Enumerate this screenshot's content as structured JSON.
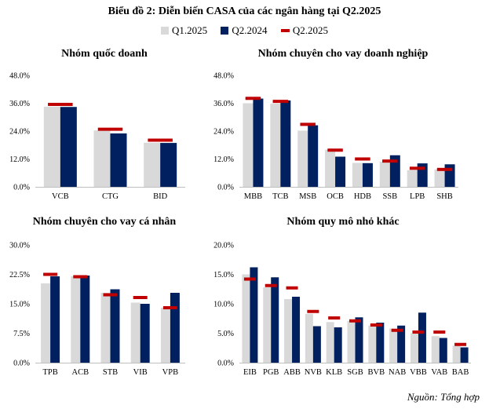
{
  "figure": {
    "title": "Biểu đồ 2: Diễn biến CASA của các ngân hàng tại Q2.2025",
    "source": "Nguồn: Tổng hợp"
  },
  "legend": [
    {
      "name": "Q1.2025",
      "color": "#d9d9d9",
      "kind": "bar"
    },
    {
      "name": "Q2.2024",
      "color": "#002060",
      "kind": "bar"
    },
    {
      "name": "Q2.2025",
      "color": "#c00000",
      "kind": "marker"
    }
  ],
  "chart_data": [
    {
      "type": "bar",
      "title": "Nhóm quốc doanh",
      "categories": [
        "VCB",
        "CTG",
        "BID"
      ],
      "ylim": [
        0,
        48
      ],
      "yticks": [
        0,
        12,
        24,
        36,
        48
      ],
      "yticklabels": [
        "0.0%",
        "12.0%",
        "24.0%",
        "36.0%",
        "48.0%"
      ],
      "series": [
        {
          "name": "Q1.2025",
          "values": [
            34.5,
            24.3,
            19.0
          ]
        },
        {
          "name": "Q2.2024",
          "values": [
            34.4,
            23.0,
            18.9
          ]
        },
        {
          "name": "Q2.2025",
          "values": [
            35.5,
            24.8,
            20.1
          ]
        }
      ]
    },
    {
      "type": "bar",
      "title": "Nhóm chuyên cho vay doanh nghiệp",
      "categories": [
        "MBB",
        "TCB",
        "MSB",
        "OCB",
        "HDB",
        "SSB",
        "LPB",
        "SHB"
      ],
      "ylim": [
        0,
        48
      ],
      "yticks": [
        0,
        12,
        24,
        36,
        48
      ],
      "yticklabels": [
        "0.0%",
        "12.0%",
        "24.0%",
        "36.0%",
        "48.0%"
      ],
      "series": [
        {
          "name": "Q1.2025",
          "values": [
            36.0,
            35.8,
            24.2,
            16.0,
            10.3,
            10.8,
            7.2,
            7.5
          ]
        },
        {
          "name": "Q2.2024",
          "values": [
            38.0,
            37.2,
            26.5,
            13.0,
            10.2,
            13.6,
            10.1,
            9.7
          ]
        },
        {
          "name": "Q2.2025",
          "values": [
            38.1,
            36.8,
            26.9,
            15.8,
            12.0,
            11.1,
            8.0,
            7.5
          ]
        }
      ]
    },
    {
      "type": "bar",
      "title": "Nhóm chuyên cho vay cá nhân",
      "categories": [
        "TPB",
        "ACB",
        "STB",
        "VIB",
        "VPB"
      ],
      "ylim": [
        0,
        30
      ],
      "yticks": [
        0,
        7.5,
        15,
        22.5,
        30
      ],
      "yticklabels": [
        "0.0%",
        "7.5%",
        "15.0%",
        "22.5%",
        "30.0%"
      ],
      "series": [
        {
          "name": "Q1.2025",
          "values": [
            20.2,
            22.0,
            17.8,
            15.3,
            14.0
          ]
        },
        {
          "name": "Q2.2024",
          "values": [
            22.0,
            22.2,
            18.7,
            15.0,
            17.8
          ]
        },
        {
          "name": "Q2.2025",
          "values": [
            22.5,
            21.9,
            17.3,
            16.6,
            14.0
          ]
        }
      ]
    },
    {
      "type": "bar",
      "title": "Nhóm quy mô nhỏ khác",
      "categories": [
        "EIB",
        "PGB",
        "ABB",
        "NVB",
        "KLB",
        "SGB",
        "BVB",
        "NAB",
        "VBB",
        "VAB",
        "BAB"
      ],
      "ylim": [
        0,
        20
      ],
      "yticks": [
        0,
        5,
        10,
        15,
        20
      ],
      "yticklabels": [
        "0.0%",
        "5.0%",
        "10.0%",
        "15.0%",
        "20.0%"
      ],
      "series": [
        {
          "name": "Q1.2025",
          "values": [
            15.0,
            12.8,
            10.8,
            8.3,
            6.9,
            7.1,
            6.3,
            5.8,
            5.0,
            4.5,
            2.9
          ]
        },
        {
          "name": "Q2.2024",
          "values": [
            16.2,
            14.5,
            11.2,
            6.2,
            6.0,
            7.7,
            6.8,
            6.3,
            8.5,
            4.2,
            2.6
          ]
        },
        {
          "name": "Q2.2025",
          "values": [
            14.2,
            13.1,
            12.7,
            8.7,
            7.6,
            7.1,
            6.4,
            5.5,
            5.2,
            5.2,
            3.1
          ]
        }
      ]
    }
  ]
}
